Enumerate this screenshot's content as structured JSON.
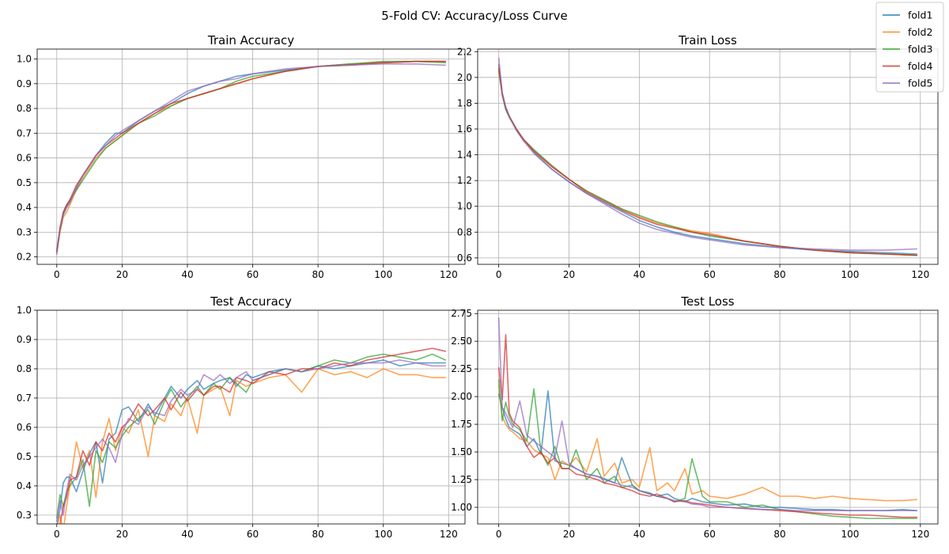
{
  "figure_title": "5-Fold CV: Accuracy/Loss Curve",
  "legend": {
    "placement": "top-right",
    "entries": [
      {
        "name": "fold1",
        "color": "#1f77b4"
      },
      {
        "name": "fold2",
        "color": "#ff7f0e"
      },
      {
        "name": "fold3",
        "color": "#2ca02c"
      },
      {
        "name": "fold4",
        "color": "#d62728"
      },
      {
        "name": "fold5",
        "color": "#9467bd"
      }
    ]
  },
  "chart_data": [
    {
      "type": "line",
      "title": "Train Accuracy",
      "xlim": [
        -6,
        125
      ],
      "ylim": [
        0.17,
        1.04
      ],
      "xticks": [
        0,
        20,
        40,
        60,
        80,
        100,
        120
      ],
      "yticks": [
        0.2,
        0.3,
        0.4,
        0.5,
        0.6,
        0.7,
        0.8,
        0.9,
        1.0
      ],
      "ytick_labels": [
        "0.2",
        "0.3",
        "0.4",
        "0.5",
        "0.6",
        "0.7",
        "0.8",
        "0.9",
        "1.0"
      ],
      "grid": true,
      "x": [
        0,
        1,
        2,
        3,
        4,
        5,
        6,
        8,
        10,
        12,
        15,
        18,
        20,
        25,
        30,
        35,
        40,
        45,
        50,
        55,
        60,
        70,
        80,
        90,
        100,
        110,
        119
      ],
      "series": [
        {
          "name": "fold1",
          "values": [
            0.23,
            0.31,
            0.38,
            0.41,
            0.43,
            0.45,
            0.48,
            0.53,
            0.57,
            0.61,
            0.66,
            0.7,
            0.7,
            0.75,
            0.79,
            0.82,
            0.86,
            0.89,
            0.91,
            0.93,
            0.94,
            0.955,
            0.97,
            0.98,
            0.985,
            0.99,
            0.99
          ]
        },
        {
          "name": "fold2",
          "values": [
            0.22,
            0.3,
            0.36,
            0.38,
            0.41,
            0.44,
            0.47,
            0.52,
            0.56,
            0.6,
            0.64,
            0.67,
            0.69,
            0.74,
            0.78,
            0.81,
            0.84,
            0.86,
            0.88,
            0.9,
            0.92,
            0.95,
            0.97,
            0.98,
            0.985,
            0.99,
            0.99
          ]
        },
        {
          "name": "fold3",
          "values": [
            0.22,
            0.31,
            0.37,
            0.4,
            0.42,
            0.45,
            0.47,
            0.51,
            0.55,
            0.59,
            0.64,
            0.67,
            0.69,
            0.74,
            0.77,
            0.81,
            0.84,
            0.86,
            0.88,
            0.91,
            0.93,
            0.95,
            0.97,
            0.98,
            0.99,
            0.99,
            0.985
          ]
        },
        {
          "name": "fold4",
          "values": [
            0.22,
            0.32,
            0.38,
            0.41,
            0.43,
            0.46,
            0.49,
            0.53,
            0.57,
            0.61,
            0.65,
            0.68,
            0.7,
            0.74,
            0.78,
            0.82,
            0.84,
            0.86,
            0.88,
            0.9,
            0.92,
            0.95,
            0.97,
            0.975,
            0.985,
            0.99,
            0.99
          ]
        },
        {
          "name": "fold5",
          "values": [
            0.21,
            0.31,
            0.37,
            0.4,
            0.42,
            0.45,
            0.48,
            0.53,
            0.57,
            0.61,
            0.65,
            0.69,
            0.71,
            0.75,
            0.79,
            0.83,
            0.87,
            0.89,
            0.91,
            0.92,
            0.94,
            0.96,
            0.97,
            0.975,
            0.98,
            0.98,
            0.975
          ]
        }
      ]
    },
    {
      "type": "line",
      "title": "Train Loss",
      "xlim": [
        -6,
        125
      ],
      "ylim": [
        0.55,
        2.22
      ],
      "xticks": [
        0,
        20,
        40,
        60,
        80,
        100,
        120
      ],
      "yticks": [
        0.6,
        0.8,
        1.0,
        1.2,
        1.4,
        1.6,
        1.8,
        2.0,
        2.2
      ],
      "ytick_labels": [
        "0.6",
        "0.8",
        "1.0",
        "1.2",
        "1.4",
        "1.6",
        "1.8",
        "2.0",
        "2.2"
      ],
      "grid": true,
      "x": [
        0,
        1,
        2,
        3,
        5,
        7,
        10,
        15,
        20,
        25,
        30,
        35,
        40,
        45,
        50,
        55,
        60,
        70,
        80,
        90,
        100,
        110,
        119
      ],
      "series": [
        {
          "name": "fold1",
          "values": [
            2.1,
            1.88,
            1.77,
            1.7,
            1.6,
            1.52,
            1.42,
            1.29,
            1.19,
            1.1,
            1.03,
            0.96,
            0.89,
            0.84,
            0.8,
            0.77,
            0.75,
            0.71,
            0.68,
            0.66,
            0.65,
            0.64,
            0.63
          ]
        },
        {
          "name": "fold2",
          "values": [
            2.08,
            1.87,
            1.76,
            1.69,
            1.59,
            1.51,
            1.43,
            1.31,
            1.21,
            1.12,
            1.05,
            0.98,
            0.92,
            0.87,
            0.84,
            0.81,
            0.79,
            0.73,
            0.69,
            0.66,
            0.64,
            0.63,
            0.62
          ]
        },
        {
          "name": "fold3",
          "values": [
            2.05,
            1.86,
            1.75,
            1.69,
            1.6,
            1.52,
            1.44,
            1.32,
            1.21,
            1.12,
            1.05,
            0.98,
            0.93,
            0.88,
            0.84,
            0.8,
            0.77,
            0.73,
            0.69,
            0.66,
            0.64,
            0.63,
            0.62
          ]
        },
        {
          "name": "fold4",
          "values": [
            2.07,
            1.87,
            1.76,
            1.7,
            1.6,
            1.52,
            1.43,
            1.31,
            1.21,
            1.11,
            1.04,
            0.97,
            0.91,
            0.86,
            0.83,
            0.8,
            0.78,
            0.73,
            0.69,
            0.66,
            0.64,
            0.63,
            0.62
          ]
        },
        {
          "name": "fold5",
          "values": [
            2.15,
            1.88,
            1.77,
            1.7,
            1.59,
            1.51,
            1.41,
            1.29,
            1.19,
            1.1,
            1.02,
            0.94,
            0.87,
            0.82,
            0.79,
            0.76,
            0.74,
            0.7,
            0.68,
            0.67,
            0.66,
            0.66,
            0.67
          ]
        }
      ]
    },
    {
      "type": "line",
      "title": "Test Accuracy",
      "xlim": [
        -6,
        125
      ],
      "ylim": [
        0.27,
        1.0
      ],
      "xticks": [
        0,
        20,
        40,
        60,
        80,
        100,
        120
      ],
      "yticks": [
        0.3,
        0.4,
        0.5,
        0.6,
        0.7,
        0.8,
        0.9,
        1.0
      ],
      "ytick_labels": [
        "0.3",
        "0.4",
        "0.5",
        "0.6",
        "0.7",
        "0.8",
        "0.9",
        "1.0"
      ],
      "grid": true,
      "x": [
        0,
        1,
        2,
        3,
        4,
        6,
        8,
        10,
        12,
        14,
        16,
        18,
        20,
        22,
        25,
        28,
        30,
        33,
        35,
        38,
        40,
        43,
        45,
        48,
        50,
        53,
        55,
        58,
        60,
        65,
        70,
        75,
        80,
        85,
        90,
        95,
        100,
        105,
        110,
        115,
        119
      ],
      "series": [
        {
          "name": "fold1",
          "values": [
            0.26,
            0.32,
            0.41,
            0.43,
            0.43,
            0.38,
            0.45,
            0.51,
            0.55,
            0.41,
            0.56,
            0.58,
            0.66,
            0.67,
            0.62,
            0.68,
            0.64,
            0.7,
            0.74,
            0.7,
            0.73,
            0.76,
            0.73,
            0.75,
            0.76,
            0.77,
            0.74,
            0.78,
            0.77,
            0.79,
            0.8,
            0.79,
            0.81,
            0.8,
            0.81,
            0.82,
            0.83,
            0.81,
            0.82,
            0.82,
            0.82
          ]
        },
        {
          "name": "fold2",
          "values": [
            0.26,
            0.3,
            0.25,
            0.33,
            0.4,
            0.55,
            0.46,
            0.52,
            0.36,
            0.55,
            0.63,
            0.52,
            0.6,
            0.58,
            0.66,
            0.5,
            0.64,
            0.62,
            0.68,
            0.64,
            0.7,
            0.58,
            0.71,
            0.73,
            0.74,
            0.64,
            0.76,
            0.74,
            0.75,
            0.77,
            0.78,
            0.72,
            0.8,
            0.78,
            0.79,
            0.77,
            0.8,
            0.78,
            0.78,
            0.77,
            0.77
          ]
        },
        {
          "name": "fold3",
          "values": [
            0.29,
            0.37,
            0.33,
            0.38,
            0.4,
            0.43,
            0.49,
            0.33,
            0.52,
            0.48,
            0.55,
            0.53,
            0.57,
            0.6,
            0.63,
            0.66,
            0.61,
            0.69,
            0.73,
            0.67,
            0.7,
            0.74,
            0.71,
            0.75,
            0.73,
            0.77,
            0.75,
            0.72,
            0.76,
            0.78,
            0.8,
            0.79,
            0.81,
            0.83,
            0.82,
            0.84,
            0.85,
            0.84,
            0.83,
            0.85,
            0.83
          ]
        },
        {
          "name": "fold4",
          "values": [
            0.26,
            0.27,
            0.33,
            0.36,
            0.42,
            0.43,
            0.52,
            0.47,
            0.55,
            0.52,
            0.58,
            0.55,
            0.6,
            0.62,
            0.68,
            0.64,
            0.66,
            0.7,
            0.66,
            0.72,
            0.69,
            0.73,
            0.71,
            0.74,
            0.74,
            0.72,
            0.77,
            0.76,
            0.75,
            0.79,
            0.78,
            0.8,
            0.8,
            0.82,
            0.81,
            0.83,
            0.84,
            0.85,
            0.86,
            0.87,
            0.86
          ]
        },
        {
          "name": "fold5",
          "values": [
            0.28,
            0.35,
            0.3,
            0.38,
            0.44,
            0.42,
            0.47,
            0.5,
            0.53,
            0.56,
            0.53,
            0.48,
            0.58,
            0.63,
            0.61,
            0.67,
            0.65,
            0.64,
            0.69,
            0.73,
            0.71,
            0.73,
            0.78,
            0.76,
            0.78,
            0.75,
            0.77,
            0.79,
            0.76,
            0.78,
            0.8,
            0.79,
            0.8,
            0.81,
            0.82,
            0.82,
            0.82,
            0.83,
            0.82,
            0.81,
            0.81
          ]
        }
      ]
    },
    {
      "type": "line",
      "title": "Test Loss",
      "xlim": [
        -6,
        125
      ],
      "ylim": [
        0.85,
        2.78
      ],
      "xticks": [
        0,
        20,
        40,
        60,
        80,
        100,
        120
      ],
      "yticks": [
        1.0,
        1.25,
        1.5,
        1.75,
        2.0,
        2.25,
        2.5,
        2.75
      ],
      "ytick_labels": [
        "1.00",
        "1.25",
        "1.50",
        "1.75",
        "2.00",
        "2.25",
        "2.50",
        "2.75"
      ],
      "grid": true,
      "x": [
        0,
        1,
        2,
        3,
        4,
        6,
        8,
        10,
        12,
        14,
        16,
        18,
        20,
        22,
        25,
        28,
        30,
        33,
        35,
        38,
        40,
        43,
        45,
        48,
        50,
        53,
        55,
        58,
        60,
        65,
        70,
        75,
        80,
        85,
        90,
        95,
        100,
        105,
        110,
        115,
        119
      ],
      "series": [
        {
          "name": "fold1",
          "values": [
            2.02,
            1.9,
            1.8,
            1.72,
            1.7,
            1.66,
            1.55,
            1.62,
            1.48,
            2.05,
            1.42,
            1.4,
            1.38,
            1.35,
            1.3,
            1.28,
            1.26,
            1.22,
            1.45,
            1.2,
            1.15,
            1.13,
            1.1,
            1.12,
            1.08,
            1.05,
            1.08,
            1.05,
            1.04,
            1.02,
            1.03,
            1.0,
            1.0,
            0.99,
            0.98,
            0.98,
            0.97,
            0.97,
            0.97,
            0.98,
            0.97
          ]
        },
        {
          "name": "fold2",
          "values": [
            2.1,
            1.82,
            1.75,
            1.7,
            1.68,
            1.62,
            1.6,
            1.52,
            1.48,
            1.45,
            1.25,
            1.42,
            1.38,
            1.45,
            1.32,
            1.62,
            1.28,
            1.4,
            1.22,
            1.25,
            1.18,
            1.54,
            1.15,
            1.22,
            1.15,
            1.35,
            1.12,
            1.15,
            1.1,
            1.08,
            1.12,
            1.18,
            1.1,
            1.1,
            1.08,
            1.1,
            1.08,
            1.07,
            1.06,
            1.06,
            1.07
          ]
        },
        {
          "name": "fold3",
          "values": [
            2.15,
            1.78,
            1.95,
            1.82,
            1.75,
            1.7,
            1.6,
            2.07,
            1.5,
            1.38,
            1.55,
            1.35,
            1.35,
            1.52,
            1.25,
            1.35,
            1.22,
            1.28,
            1.18,
            1.2,
            1.15,
            1.12,
            1.1,
            1.08,
            1.05,
            1.08,
            1.44,
            1.1,
            1.05,
            1.05,
            1.0,
            1.02,
            0.98,
            0.96,
            0.94,
            0.92,
            0.91,
            0.9,
            0.9,
            0.9,
            0.9
          ]
        },
        {
          "name": "fold4",
          "values": [
            2.26,
            1.97,
            2.56,
            1.85,
            1.78,
            1.72,
            1.55,
            1.45,
            1.5,
            1.4,
            1.45,
            1.35,
            1.35,
            1.3,
            1.28,
            1.25,
            1.22,
            1.2,
            1.18,
            1.15,
            1.12,
            1.1,
            1.12,
            1.08,
            1.05,
            1.06,
            1.04,
            1.03,
            1.02,
            1.0,
            0.99,
            0.98,
            0.97,
            0.96,
            0.95,
            0.94,
            0.93,
            0.93,
            0.92,
            0.91,
            0.91
          ]
        },
        {
          "name": "fold5",
          "values": [
            2.71,
            1.9,
            1.85,
            1.78,
            1.72,
            1.96,
            1.65,
            1.6,
            1.55,
            1.5,
            1.45,
            1.78,
            1.4,
            1.35,
            1.3,
            1.28,
            1.25,
            1.22,
            1.2,
            1.18,
            1.15,
            1.12,
            1.1,
            1.08,
            1.06,
            1.05,
            1.03,
            1.02,
            1.0,
            1.0,
            0.99,
            0.98,
            0.98,
            0.97,
            0.97,
            0.97,
            0.97,
            0.97,
            0.97,
            0.97,
            0.97
          ]
        }
      ]
    }
  ]
}
